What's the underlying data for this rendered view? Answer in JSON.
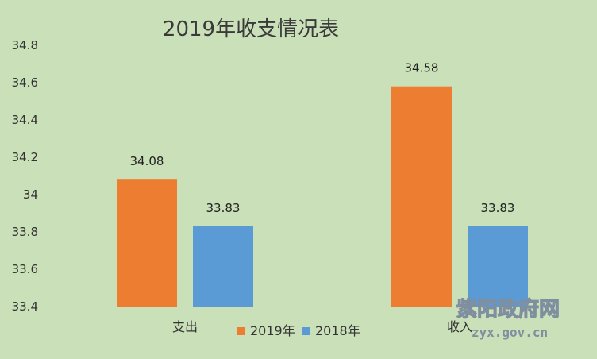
{
  "chart_data": {
    "type": "bar",
    "title": "2019年收支情况表",
    "categories": [
      "支出",
      "收入"
    ],
    "series": [
      {
        "name": "2019年",
        "color": "#ed7d31",
        "values": [
          34.08,
          34.58
        ]
      },
      {
        "name": "2018年",
        "color": "#5b9bd5",
        "values": [
          33.83,
          33.83
        ]
      }
    ],
    "ylim": [
      33.4,
      34.8
    ],
    "yticks": [
      33.4,
      33.6,
      33.8,
      34,
      34.2,
      34.4,
      34.6,
      34.8
    ],
    "grid": false,
    "legend": "bottom",
    "data_labels": true
  },
  "watermark": {
    "text_cn": "紫阳政府网",
    "text_en": "zyx.gov.cn"
  }
}
